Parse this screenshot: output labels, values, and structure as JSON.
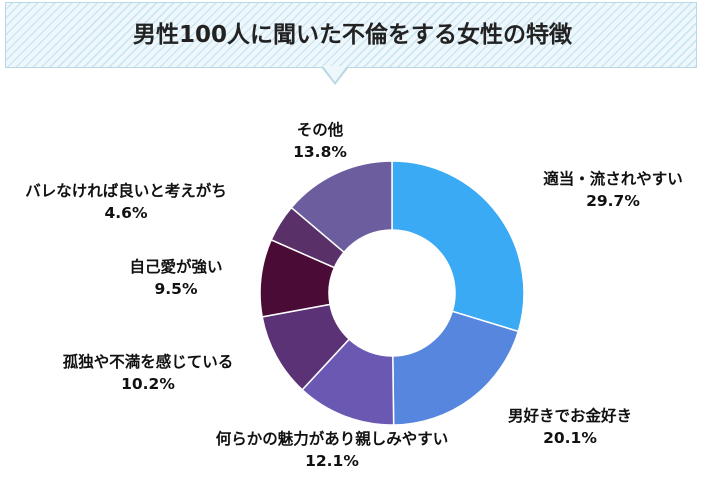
{
  "title": "男性100人に聞いた不倫をする女性の特徴",
  "chart_data": {
    "type": "pie",
    "donut": true,
    "unit": "%",
    "slices": [
      {
        "label": "適当・流されやすい",
        "value": 29.7,
        "value_text": "29.7%",
        "color": "#3aaaf4"
      },
      {
        "label": "男好きでお金好き",
        "value": 20.1,
        "value_text": "20.1%",
        "color": "#5686dd"
      },
      {
        "label": "何らかの魅力があり親しみやすい",
        "value": 12.1,
        "value_text": "12.1%",
        "color": "#6a58b3"
      },
      {
        "label": "孤独や不満を感じている",
        "value": 10.2,
        "value_text": "10.2%",
        "color": "#5b3276"
      },
      {
        "label": "自己愛が強い",
        "value": 9.5,
        "value_text": "9.5%",
        "color": "#4a0b36"
      },
      {
        "label": "バレなければ良いと考えがち",
        "value": 4.6,
        "value_text": "4.6%",
        "color": "#5a3068"
      },
      {
        "label": "その他",
        "value": 13.8,
        "value_text": "13.8%",
        "color": "#6c5d9e"
      }
    ]
  }
}
